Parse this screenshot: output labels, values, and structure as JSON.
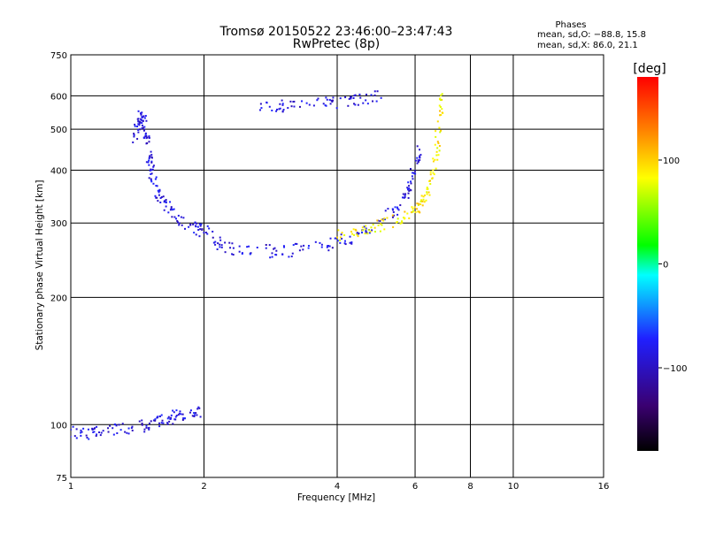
{
  "chart_data": {
    "type": "scatter",
    "title": "Tromsø 20150522 23:46:00–23:47:43",
    "subtitle": "RwPretec (8p)",
    "xlabel": "Frequency [MHz]",
    "ylabel": "Stationary phase Virtual Height [km]",
    "x_scale": "log",
    "y_scale": "log",
    "xlim": [
      1,
      16
    ],
    "ylim": [
      75,
      750
    ],
    "x_ticks": [
      1,
      2,
      4,
      6,
      8,
      10,
      16
    ],
    "x_tick_labels": [
      "1",
      "2",
      "4",
      "6",
      "8",
      "10",
      "16"
    ],
    "y_ticks": [
      75,
      100,
      200,
      300,
      400,
      500,
      600,
      750
    ],
    "y_tick_labels": [
      "75",
      "100",
      "200",
      "300",
      "400",
      "500",
      "600",
      "750"
    ],
    "x_grid": [
      2,
      4,
      6,
      8,
      10
    ],
    "y_grid": [
      100,
      200,
      300,
      400,
      500,
      600
    ],
    "phase_stats": {
      "title": "Phases",
      "line1": "mean, sd,O: −88.8, 15.8",
      "line2": "mean, sd,X: 86.0, 21.1"
    },
    "colorbar": {
      "label": "[deg]",
      "range": [
        -180,
        180
      ],
      "ticks": [
        100,
        0,
        -100
      ],
      "tick_labels": [
        "100",
        "0",
        "−100"
      ],
      "colormap": [
        "#000000",
        "#3a0070",
        "#2020ff",
        "#00ffff",
        "#00ff00",
        "#ffff00",
        "#ff8000",
        "#ff0000"
      ]
    },
    "series": [
      {
        "name": "O",
        "phase": -90,
        "traces": [
          {
            "x": [
              1.0,
              1.1,
              1.2,
              1.35,
              1.5,
              1.6,
              1.7,
              1.8,
              1.95
            ],
            "y": [
              96,
              95,
              97,
              98,
              100,
              102,
              104,
              106,
              108
            ]
          },
          {
            "x": [
              1.4,
              1.42,
              1.45,
              1.48,
              1.5,
              1.52,
              1.55,
              1.6,
              1.7,
              1.8,
              1.95,
              2.1
            ],
            "y": [
              480,
              520,
              540,
              500,
              450,
              400,
              370,
              340,
              320,
              300,
              290,
              280
            ]
          },
          {
            "x": [
              2.1,
              2.3,
              2.6,
              3.0,
              3.5,
              4.0,
              4.5,
              5.0,
              5.5,
              5.8,
              6.0,
              6.2
            ],
            "y": [
              270,
              262,
              258,
              257,
              262,
              270,
              282,
              300,
              330,
              360,
              400,
              450
            ]
          },
          {
            "x": [
              2.6,
              3.0,
              3.5,
              4.0,
              4.5,
              5.0
            ],
            "y": [
              565,
              565,
              570,
              580,
              590,
              600
            ]
          }
        ]
      },
      {
        "name": "X",
        "phase": 90,
        "traces": [
          {
            "x": [
              4.0,
              4.5,
              5.0,
              5.5,
              6.0,
              6.3,
              6.5,
              6.7,
              6.8,
              6.9
            ],
            "y": [
              280,
              286,
              295,
              305,
              320,
              340,
              380,
              430,
              520,
              620
            ]
          }
        ]
      }
    ]
  }
}
